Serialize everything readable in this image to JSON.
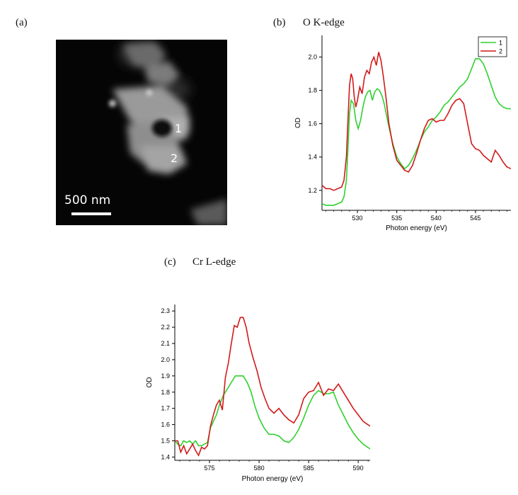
{
  "panels": {
    "a": {
      "label": "(a)"
    },
    "b": {
      "label": "(b)",
      "title": "O K-edge"
    },
    "c": {
      "label": "(c)",
      "title": "Cr L-edge"
    }
  },
  "micrograph": {
    "scale_label": "500 nm",
    "point_labels": [
      "1",
      "2"
    ]
  },
  "chart_data": [
    {
      "type": "line",
      "id": "b",
      "title": "O K-edge",
      "xlabel": "Photon energy (eV)",
      "ylabel": "OD",
      "xlim": [
        525.5,
        549.5
      ],
      "ylim": [
        1.08,
        2.13
      ],
      "xticks": [
        530,
        535,
        540,
        545
      ],
      "xtick_labels": [
        "530",
        "535",
        "540",
        "545"
      ],
      "yticks": [
        1.2,
        1.4,
        1.6,
        1.8,
        2.0
      ],
      "ytick_labels": [
        "1.2",
        "1.4",
        "1.6",
        "1.8",
        "2.0"
      ],
      "grid": false,
      "legend": "top-right",
      "series": [
        {
          "name": "1",
          "color": "#2ed12e",
          "x": [
            525.5,
            526,
            526.5,
            527,
            527.5,
            528,
            528.3,
            528.6,
            528.8,
            529,
            529.2,
            529.5,
            529.8,
            530.1,
            530.4,
            530.7,
            531,
            531.3,
            531.6,
            531.9,
            532.2,
            532.5,
            532.8,
            533.1,
            533.4,
            533.7,
            534,
            534.5,
            535,
            535.5,
            536,
            536.5,
            537,
            537.5,
            538,
            538.5,
            539,
            539.5,
            540,
            540.5,
            541,
            541.5,
            542,
            542.5,
            543,
            543.5,
            544,
            544.5,
            545,
            545.5,
            546,
            546.5,
            547,
            547.5,
            548,
            548.5,
            549,
            549.5
          ],
          "y": [
            1.12,
            1.11,
            1.11,
            1.11,
            1.12,
            1.13,
            1.16,
            1.26,
            1.45,
            1.66,
            1.74,
            1.72,
            1.62,
            1.57,
            1.62,
            1.7,
            1.76,
            1.79,
            1.8,
            1.74,
            1.79,
            1.81,
            1.8,
            1.77,
            1.72,
            1.65,
            1.58,
            1.48,
            1.4,
            1.36,
            1.33,
            1.35,
            1.39,
            1.44,
            1.5,
            1.55,
            1.58,
            1.62,
            1.64,
            1.67,
            1.71,
            1.73,
            1.76,
            1.79,
            1.82,
            1.84,
            1.87,
            1.93,
            1.99,
            1.99,
            1.96,
            1.9,
            1.83,
            1.76,
            1.72,
            1.7,
            1.69,
            1.69
          ]
        },
        {
          "name": "2",
          "color": "#d11a1a",
          "x": [
            525.5,
            526,
            526.5,
            527,
            527.5,
            528,
            528.3,
            528.6,
            528.8,
            529,
            529.2,
            529.4,
            529.6,
            529.8,
            530,
            530.3,
            530.6,
            530.9,
            531.2,
            531.5,
            531.8,
            532.1,
            532.4,
            532.7,
            533,
            533.3,
            533.6,
            534,
            534.5,
            535,
            535.5,
            536,
            536.5,
            537,
            537.5,
            538,
            538.5,
            539,
            539.5,
            540,
            540.5,
            541,
            541.5,
            542,
            542.5,
            543,
            543.5,
            544,
            544.5,
            545,
            545.5,
            546,
            546.5,
            547,
            547.5,
            548,
            548.5,
            549,
            549.5
          ],
          "y": [
            1.23,
            1.21,
            1.21,
            1.2,
            1.21,
            1.22,
            1.26,
            1.4,
            1.62,
            1.83,
            1.9,
            1.87,
            1.76,
            1.7,
            1.74,
            1.82,
            1.78,
            1.88,
            1.92,
            1.9,
            1.97,
            2.0,
            1.95,
            2.03,
            1.98,
            1.88,
            1.77,
            1.6,
            1.47,
            1.38,
            1.35,
            1.32,
            1.31,
            1.35,
            1.42,
            1.5,
            1.57,
            1.62,
            1.63,
            1.61,
            1.62,
            1.62,
            1.66,
            1.71,
            1.74,
            1.75,
            1.72,
            1.6,
            1.48,
            1.45,
            1.44,
            1.41,
            1.39,
            1.37,
            1.44,
            1.41,
            1.37,
            1.34,
            1.33
          ]
        }
      ]
    },
    {
      "type": "line",
      "id": "c",
      "title": "Cr L-edge",
      "xlabel": "Photon energy (eV)",
      "ylabel": "OD",
      "xlim": [
        571.5,
        591.2
      ],
      "ylim": [
        1.38,
        2.34
      ],
      "xticks": [
        575,
        580,
        585,
        590
      ],
      "xtick_labels": [
        "575",
        "580",
        "585",
        "590"
      ],
      "yticks": [
        1.4,
        1.5,
        1.6,
        1.7,
        1.8,
        1.9,
        2.0,
        2.1,
        2.2,
        2.3
      ],
      "ytick_labels": [
        "1.4",
        "1.5",
        "1.6",
        "1.7",
        "1.8",
        "1.9",
        "2.0",
        "2.1",
        "2.2",
        "2.3"
      ],
      "grid": false,
      "legend": "none",
      "series": [
        {
          "name": "",
          "color": "#2ed12e",
          "x": [
            571.5,
            571.8,
            572.1,
            572.4,
            572.7,
            573,
            573.3,
            573.6,
            573.9,
            574.2,
            574.5,
            574.8,
            575.1,
            575.4,
            575.7,
            576,
            576.4,
            576.8,
            577.2,
            577.6,
            578,
            578.4,
            578.8,
            579.2,
            579.6,
            580,
            580.5,
            581,
            581.5,
            582,
            582.5,
            583,
            583.5,
            584,
            584.5,
            585,
            585.5,
            586,
            586.5,
            587,
            587.5,
            588,
            588.5,
            589,
            589.5,
            590,
            590.5,
            591.2
          ],
          "y": [
            1.5,
            1.48,
            1.47,
            1.5,
            1.49,
            1.5,
            1.48,
            1.5,
            1.47,
            1.47,
            1.48,
            1.49,
            1.58,
            1.62,
            1.66,
            1.72,
            1.78,
            1.82,
            1.86,
            1.9,
            1.9,
            1.9,
            1.86,
            1.8,
            1.71,
            1.64,
            1.58,
            1.54,
            1.54,
            1.53,
            1.5,
            1.49,
            1.52,
            1.57,
            1.64,
            1.72,
            1.78,
            1.81,
            1.79,
            1.79,
            1.8,
            1.72,
            1.66,
            1.6,
            1.55,
            1.51,
            1.48,
            1.45
          ]
        },
        {
          "name": "",
          "color": "#d11a1a",
          "x": [
            571.5,
            571.8,
            572.1,
            572.4,
            572.7,
            573,
            573.3,
            573.6,
            573.9,
            574.2,
            574.5,
            574.8,
            575.1,
            575.4,
            575.7,
            576,
            576.3,
            576.6,
            576.9,
            577.2,
            577.5,
            577.8,
            578.1,
            578.4,
            578.7,
            579,
            579.4,
            579.8,
            580.2,
            580.6,
            581,
            581.5,
            582,
            582.5,
            583,
            583.5,
            584,
            584.5,
            585,
            585.5,
            586,
            586.5,
            587,
            587.5,
            588,
            588.5,
            589,
            589.5,
            590,
            590.5,
            591.2
          ],
          "y": [
            1.5,
            1.5,
            1.43,
            1.47,
            1.42,
            1.45,
            1.48,
            1.44,
            1.41,
            1.46,
            1.45,
            1.47,
            1.59,
            1.66,
            1.72,
            1.75,
            1.69,
            1.89,
            1.98,
            2.1,
            2.21,
            2.2,
            2.26,
            2.26,
            2.2,
            2.1,
            2.01,
            1.93,
            1.83,
            1.76,
            1.7,
            1.67,
            1.7,
            1.66,
            1.63,
            1.61,
            1.66,
            1.76,
            1.8,
            1.81,
            1.86,
            1.78,
            1.82,
            1.81,
            1.85,
            1.8,
            1.75,
            1.7,
            1.66,
            1.62,
            1.59
          ]
        }
      ]
    }
  ]
}
